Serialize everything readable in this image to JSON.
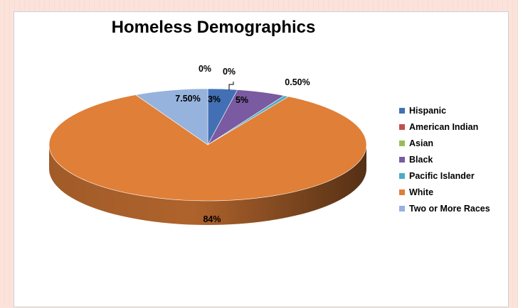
{
  "chart_data": {
    "type": "pie",
    "title": "Homeless Demographics",
    "labels": [
      "Hispanic",
      "American Indian",
      "Asian",
      "Black",
      "Pacific Islander",
      "White",
      "Two or More Races"
    ],
    "values": [
      3,
      0,
      0,
      5,
      0.5,
      84,
      7.5
    ],
    "value_labels": [
      "3%",
      "0%",
      "0%",
      "5%",
      "0.50%",
      "84%",
      "7.50%"
    ],
    "colors": [
      "#4370b4",
      "#c0504d",
      "#9bbb59",
      "#7a5aa0",
      "#4bacc6",
      "#e07f38",
      "#95b3dc"
    ],
    "legend_position": "right"
  }
}
